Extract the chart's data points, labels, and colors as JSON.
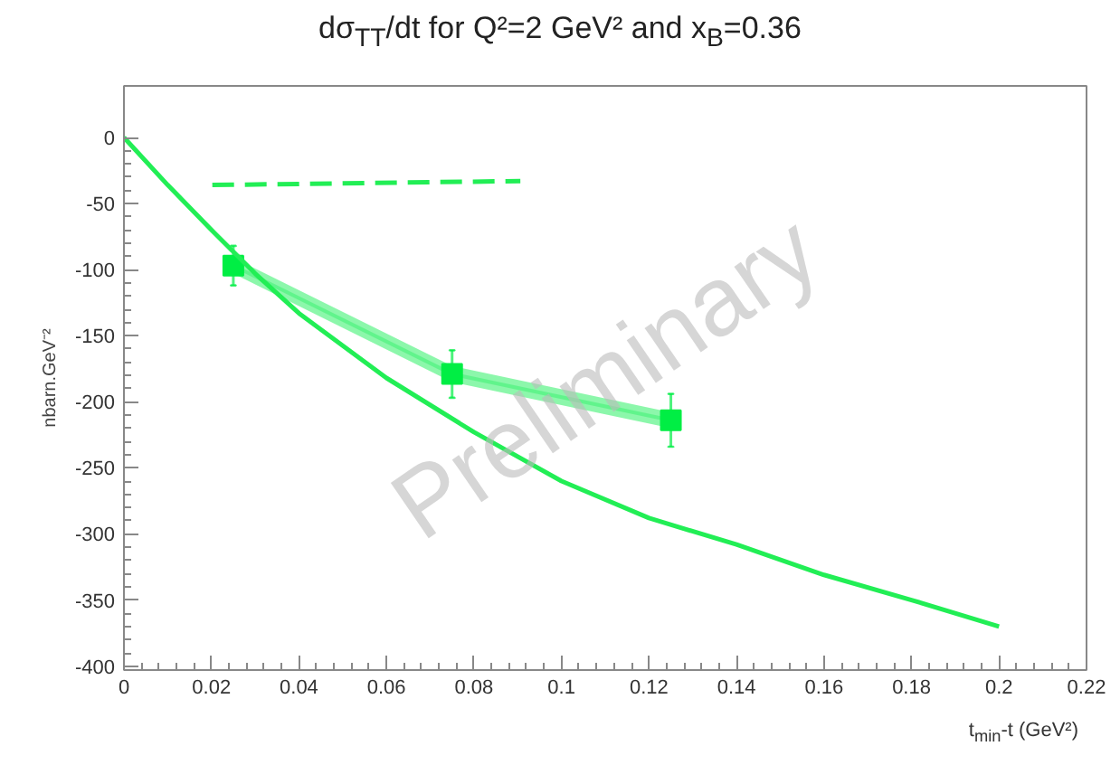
{
  "chart_data": {
    "type": "line",
    "title": "dσ$_{TT}$/dt for Q²=2 GeV² and x$_{B}$=0.36",
    "xlabel": "t$_{min}$-t (GeV²)",
    "ylabel": "nbarn.GeV⁻²",
    "annotations": [
      "Preliminary"
    ],
    "xlim": [
      0,
      0.22
    ],
    "ylim": [
      -403,
      39
    ],
    "xticks": [
      0,
      0.02,
      0.04,
      0.06,
      0.08,
      0.1,
      0.12,
      0.14,
      0.16,
      0.18,
      0.2,
      0.22
    ],
    "yticks": [
      -400,
      -350,
      -300,
      -250,
      -200,
      -150,
      -100,
      -50,
      0
    ],
    "grid": false,
    "series": [
      {
        "color": "#00ee44",
        "x": [
          0.025,
          0.075,
          0.125
        ],
        "values": [
          -97,
          -179,
          -214
        ],
        "lower": [
          -103,
          -185,
          -220
        ],
        "upper": [
          -91,
          -173,
          -208
        ],
        "errors": [
          15,
          18,
          20
        ],
        "marker": "square"
      },
      {
        "color": "#22ee55",
        "x": [
          0,
          0.01,
          0.02,
          0.03,
          0.04,
          0.06,
          0.08,
          0.1,
          0.12,
          0.14,
          0.16,
          0.18,
          0.2
        ],
        "values": [
          0,
          -36,
          -70,
          -103,
          -133,
          -182,
          -223,
          -260,
          -288,
          -308,
          -331,
          -350,
          -370
        ],
        "line_style": "solid",
        "marker": "none"
      },
      {
        "color": "#22ee55",
        "x": [
          0.0202,
          0.0906
        ],
        "values": [
          -36,
          -33
        ],
        "line_style": "dashed",
        "marker": "none"
      }
    ]
  }
}
